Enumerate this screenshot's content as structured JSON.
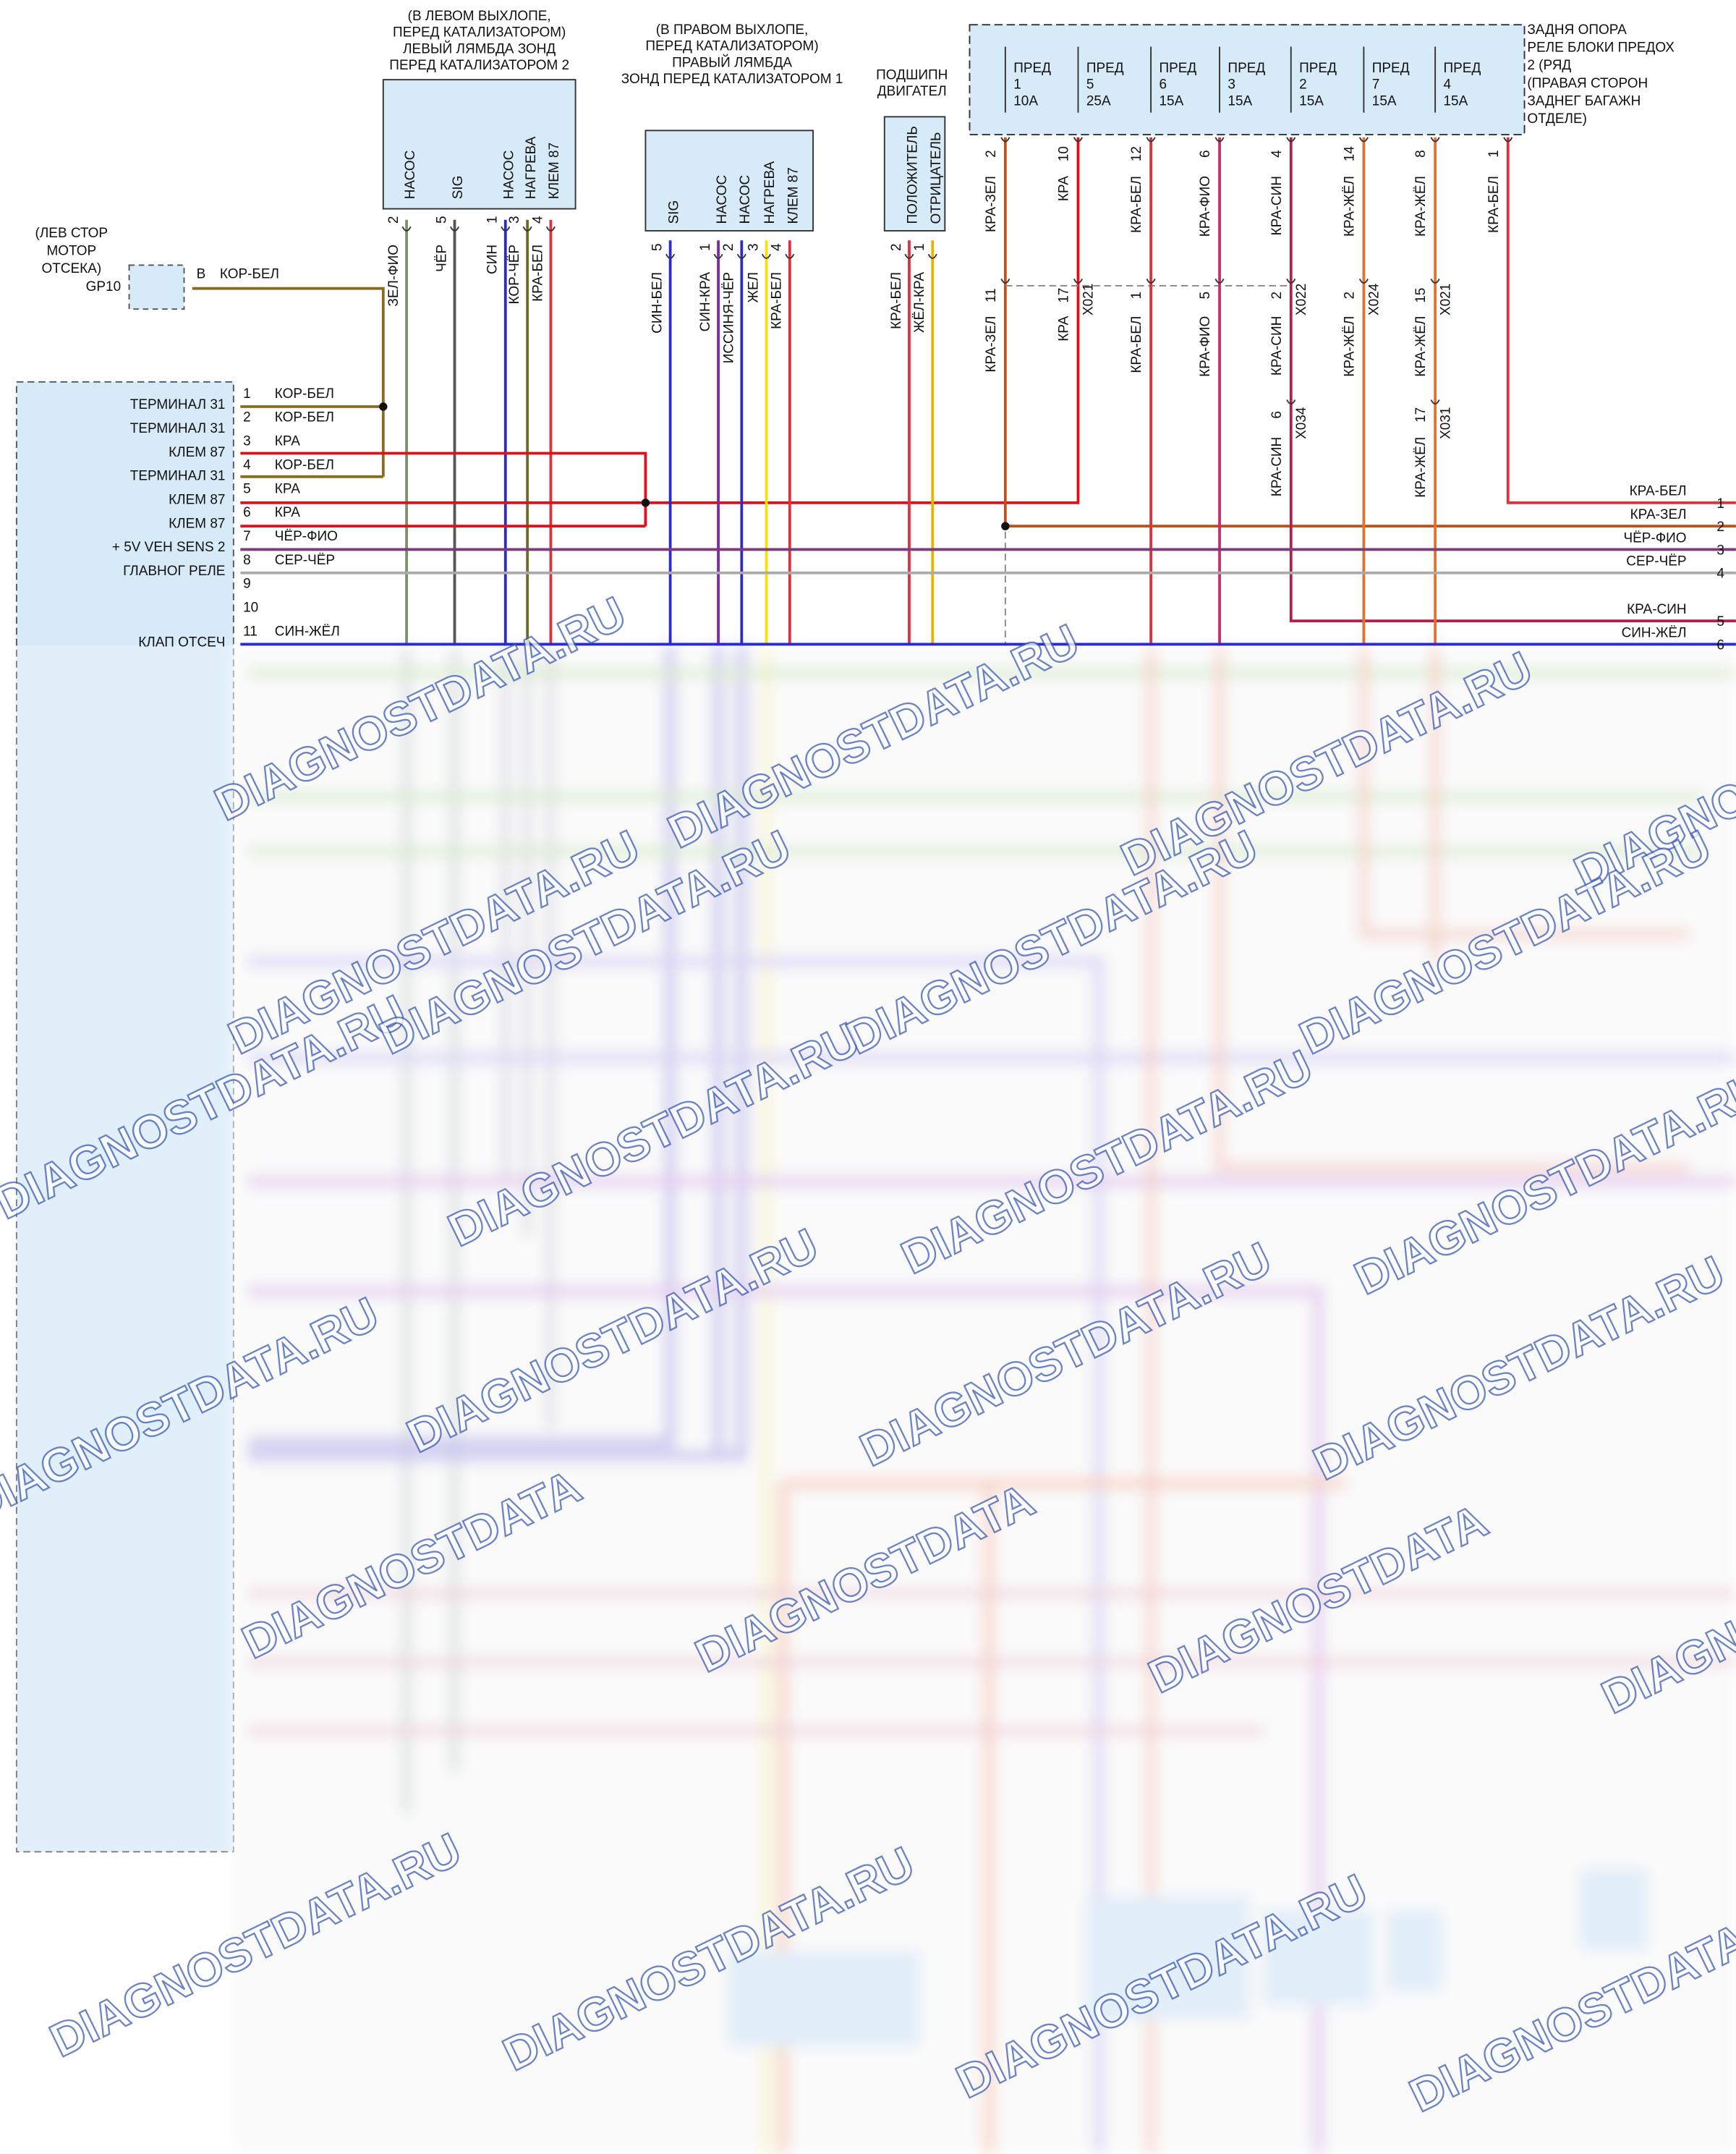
{
  "ground": {
    "notes": [
      "(ЛЕВ СТОР",
      "МОТОР",
      "ОТСЕКА)"
    ],
    "id": "GP10",
    "pin": "B",
    "wire": "КОР-БЕЛ"
  },
  "left_sensor": {
    "notes": [
      "(В ЛЕВОМ ВЫХЛОПЕ,",
      "ПЕРЕД КАТАЛИЗАТОРОМ)",
      "ЛЕВЫЙ ЛЯМБДА ЗОНД",
      "ПЕРЕД КАТАЛИЗАТОРОМ 2"
    ],
    "pins": [
      {
        "name": "НАСОС",
        "number": "2",
        "wire": "ЗЕЛ-ФИО"
      },
      {
        "name": "SIG",
        "number": "5",
        "wire": "ЧЁР"
      },
      {
        "name": "НАСОС",
        "number": "1",
        "wire": "СИН"
      },
      {
        "name": "НАГРЕВА",
        "number": "3",
        "wire": "КОР-ЧЁР"
      },
      {
        "name": "КЛЕМ 87",
        "number": "4",
        "wire": "КРА-БЕЛ"
      }
    ]
  },
  "right_sensor": {
    "notes": [
      "(В ПРАВОМ ВЫХЛОПЕ,",
      "ПЕРЕД КАТАЛИЗАТОРОМ)",
      "ПРАВЫЙ ЛЯМБДА",
      "ЗОНД ПЕРЕД КАТАЛИЗАТОРОМ 1"
    ],
    "pins": [
      {
        "name": "SIG",
        "number": "5",
        "wire": "СИН-БЕЛ"
      },
      {
        "name": "НАСОС",
        "number": "1",
        "wire": "СИН-КРА"
      },
      {
        "name": "НАСОС",
        "number": "2",
        "wire": "ИССИНЯ-ЧЁР"
      },
      {
        "name": "НАГРЕВА",
        "number": "3",
        "wire": "ЖЕЛ"
      },
      {
        "name": "КЛЕМ 87",
        "number": "4",
        "wire": "КРА-БЕЛ"
      }
    ]
  },
  "bearing_sensor": {
    "notes": [
      "ПОДШИПН",
      "ДВИГАТЕЛ"
    ],
    "pins": [
      {
        "name": "ПОЛОЖИТЕЛЬ",
        "number": "2",
        "wire": "КРА-БЕЛ"
      },
      {
        "name": "ОТРИЦАТЕЛЬ",
        "number": "1",
        "wire": "ЖЁЛ-КРА"
      }
    ]
  },
  "fuse_block": {
    "notes": [
      "ЗАДНЯ ОПОРА",
      "РЕЛЕ БЛОКИ ПРЕДОХ",
      "2 (РЯД",
      "(ПРАВАЯ СТОРОН",
      "ЗАДНЕГ БАГАЖН",
      "ОТДЕЛЕ)"
    ],
    "fuses": [
      {
        "name": "ПРЕД",
        "number": "1",
        "rating": "10А",
        "pin": "2",
        "wire": "КРА-ЗЕЛ"
      },
      {
        "name": "ПРЕД",
        "number": "5",
        "rating": "25А",
        "pin": "10",
        "wire": "КРА"
      },
      {
        "name": "ПРЕД",
        "number": "6",
        "rating": "15А",
        "pin": "12",
        "wire": "КРА-БЕЛ"
      },
      {
        "name": "ПРЕД",
        "number": "3",
        "rating": "15А",
        "pin": "6",
        "wire": "КРА-ФИО"
      },
      {
        "name": "ПРЕД",
        "number": "2",
        "rating": "15А",
        "pin": "4",
        "wire": "КРА-СИН"
      },
      {
        "name": "ПРЕД",
        "number": "7",
        "rating": "15А",
        "pin": "14",
        "wire": "КРА-ЖЁЛ"
      },
      {
        "name": "ПРЕД",
        "number": "4",
        "rating": "15А",
        "pin": "8",
        "wire": "КРА-ЖЁЛ"
      }
    ],
    "last_pin": {
      "pin": "1",
      "wire": "КРА-БЕЛ"
    }
  },
  "inline_1": [
    {
      "pin": "11",
      "wire": "КРА-ЗЕЛ"
    },
    {
      "pin": "17",
      "id": "X021",
      "wire": "КРА"
    },
    {
      "pin": "1",
      "wire": "КРА-БЕЛ"
    },
    {
      "pin": "5",
      "wire": "КРА-ФИО"
    },
    {
      "pin": "2",
      "id": "X022",
      "wire": "КРА-СИН"
    },
    {
      "pin": "2",
      "id": "X024",
      "wire": "КРА-ЖЁЛ"
    },
    {
      "pin": "15",
      "id": "X021",
      "wire": "КРА-ЖЁЛ"
    }
  ],
  "inline_2": [
    {
      "pin": "6",
      "id": "X034",
      "wire": "КРА-СИН"
    },
    {
      "pin": "17",
      "id": "X031",
      "wire": "КРА-ЖЁЛ"
    }
  ],
  "module": {
    "pins": [
      {
        "number": "1",
        "label": "ТЕРМИНАЛ 31",
        "wire": "КОР-БЕЛ"
      },
      {
        "number": "2",
        "label": "ТЕРМИНАЛ 31",
        "wire": "КОР-БЕЛ"
      },
      {
        "number": "3",
        "label": "КЛЕМ 87",
        "wire": "КРА"
      },
      {
        "number": "4",
        "label": "ТЕРМИНАЛ 31",
        "wire": "КОР-БЕЛ"
      },
      {
        "number": "5",
        "label": "КЛЕМ 87",
        "wire": "КРА"
      },
      {
        "number": "6",
        "label": "КЛЕМ 87",
        "wire": "КРА"
      },
      {
        "number": "7",
        "label": "+ 5V VEH SENS 2",
        "wire": "ЧЁР-ФИО"
      },
      {
        "number": "8",
        "label": "ГЛАВНОГ РЕЛЕ",
        "wire": "СЕР-ЧЁР"
      },
      {
        "number": "9"
      },
      {
        "number": "10"
      },
      {
        "number": "11",
        "label": "КЛАП ОТСЕЧ",
        "wire": "СИН-ЖЁЛ"
      }
    ]
  },
  "right_edge": [
    {
      "number": "1",
      "wire": "КРА-БЕЛ"
    },
    {
      "number": "2",
      "wire": "КРА-ЗЕЛ"
    },
    {
      "number": "3",
      "wire": "ЧЁР-ФИО"
    },
    {
      "number": "4",
      "wire": "СЕР-ЧЁР"
    },
    {
      "number": "5",
      "wire": "КРА-СИН"
    },
    {
      "number": "6",
      "wire": "СИН-ЖЁЛ"
    }
  ],
  "watermarks": [
    "DIAGNOSTDATA",
    "DIAGNOSTDATA.RU"
  ]
}
